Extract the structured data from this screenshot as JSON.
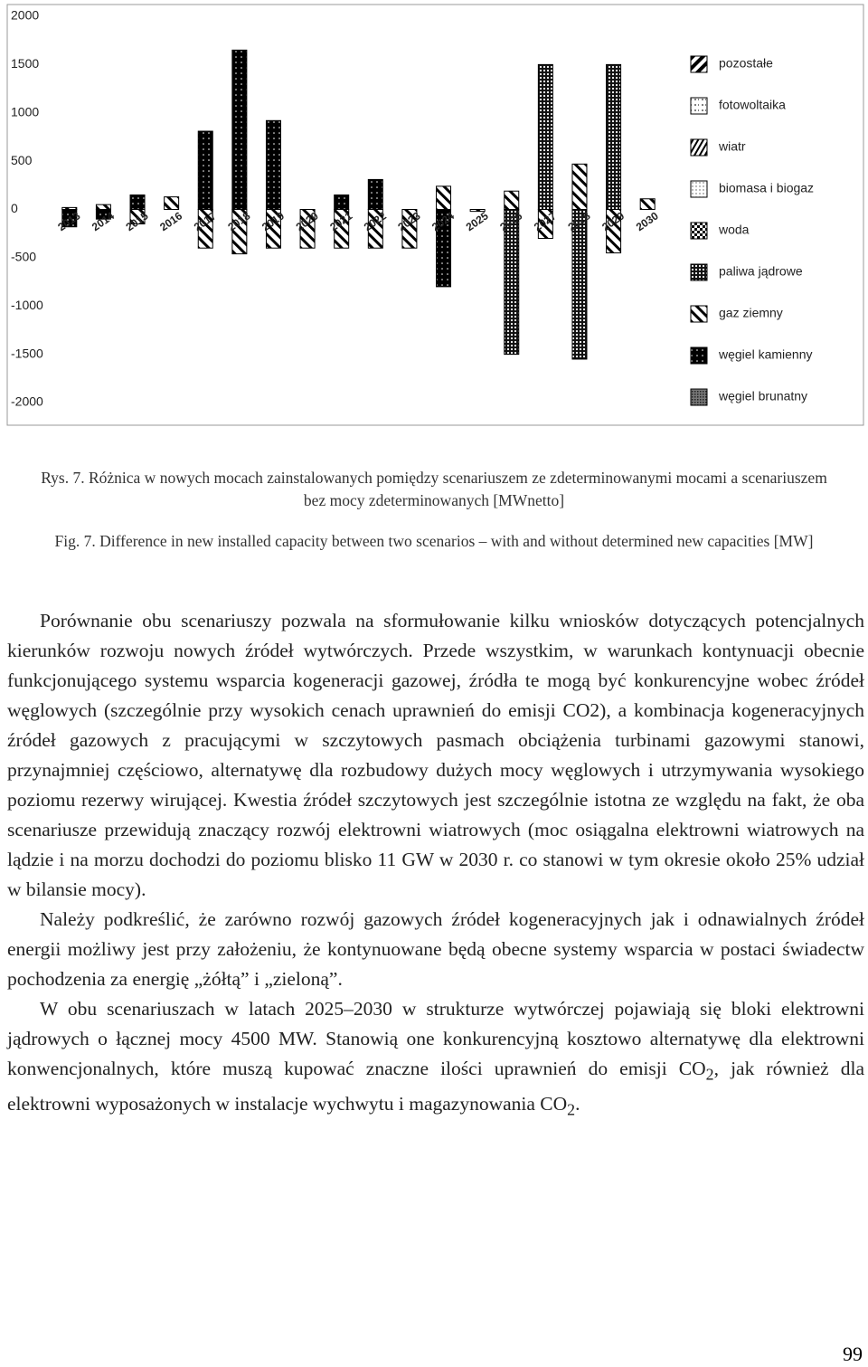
{
  "chart_data": {
    "type": "bar",
    "stacked": true,
    "categories": [
      "2013",
      "2014",
      "2015",
      "2016",
      "2017",
      "2018",
      "2019",
      "2020",
      "2021",
      "2022",
      "2023",
      "2024",
      "2025",
      "2026",
      "2027",
      "2028",
      "2029",
      "2030"
    ],
    "series": [
      {
        "name": "pozostałe",
        "values": [
          0,
          0,
          0,
          0,
          0,
          0,
          0,
          0,
          0,
          0,
          0,
          0,
          0,
          0,
          0,
          0,
          0,
          0
        ]
      },
      {
        "name": "fotowoltaika",
        "values": [
          0,
          0,
          0,
          0,
          0,
          0,
          0,
          0,
          0,
          0,
          0,
          0,
          0,
          0,
          0,
          0,
          0,
          0
        ]
      },
      {
        "name": "wiatr",
        "values": [
          0,
          0,
          0,
          0,
          0,
          0,
          0,
          0,
          0,
          0,
          0,
          0,
          0,
          0,
          0,
          0,
          0,
          0
        ]
      },
      {
        "name": "biomasa i biogaz",
        "values": [
          0,
          0,
          0,
          0,
          0,
          0,
          0,
          0,
          0,
          0,
          0,
          0,
          0,
          0,
          0,
          0,
          0,
          0
        ]
      },
      {
        "name": "woda",
        "values": [
          0,
          0,
          0,
          0,
          0,
          0,
          0,
          0,
          0,
          0,
          0,
          0,
          0,
          0,
          0,
          0,
          0,
          0
        ]
      },
      {
        "name": "paliwa jądrowe",
        "values": [
          0,
          0,
          0,
          0,
          0,
          0,
          0,
          0,
          0,
          0,
          0,
          0,
          0,
          -1500,
          1500,
          -1550,
          1500,
          0
        ]
      },
      {
        "name": "gaz ziemny",
        "values": [
          20,
          50,
          -150,
          130,
          -400,
          -460,
          -400,
          -400,
          -400,
          -400,
          -400,
          240,
          -20,
          190,
          -300,
          470,
          -450,
          110
        ]
      },
      {
        "name": "węgiel kamienny",
        "values": [
          -180,
          -100,
          150,
          0,
          810,
          1650,
          920,
          0,
          150,
          310,
          0,
          -800,
          0,
          0,
          0,
          0,
          0,
          0
        ]
      },
      {
        "name": "węgiel brunatny",
        "values": [
          0,
          0,
          0,
          0,
          0,
          0,
          0,
          0,
          0,
          0,
          0,
          0,
          0,
          0,
          0,
          0,
          0,
          0
        ]
      }
    ],
    "ylim": [
      -2000,
      2000
    ],
    "yticks": [
      2000,
      1500,
      1000,
      500,
      0,
      -500,
      -1000,
      -1500,
      -2000
    ],
    "grid": false,
    "legend": "right"
  },
  "captions": [
    "Rys. 7. Różnica w nowych mocach zainstalowanych pomiędzy scenariuszem ze zdeterminowanymi mocami a scenariuszem bez mocy zdeterminowanych [MWnetto]",
    "Fig. 7. Difference in new installed capacity between two scenarios – with and without determined new capacities [MW]"
  ],
  "paragraphs": [
    [
      "Porównanie obu scenariuszy pozwala na sformułowanie kilku wniosków dotyczących potencjalnych kierunków rozwoju nowych źródeł wytwórczych. Przede wszystkim, w warunkach kontynuacji obecnie funkcjonującego systemu wsparcia kogeneracji gazowej, źródła te mogą być konkurencyjne wobec źródeł węglowych (szczególnie przy wysokich cenach uprawnień do emisji CO2), a kombinacja kogeneracyjnych źródeł gazowych z pracującymi w szczytowych pasmach obciążenia turbinami gazowymi stanowi, przynajmniej częściowo, alternatywę dla rozbudowy dużych mocy węglowych i utrzymywania wysokiego poziomu rezerwy wirującej. Kwestia źródeł szczytowych jest szczególnie istotna ze względu na fakt, że oba scenariusze przewidują znaczący rozwój elektrowni wiatrowych (moc osiągalna elektrowni wiatrowych na lądzie i na morzu dochodzi do poziomu blisko 11 GW w 2030 r. co  stanowi w tym okresie około 25% udział w bilansie mocy)."
    ],
    [
      "Należy podkreślić, że zarówno rozwój gazowych źródeł kogeneracyjnych jak i odnawialnych źródeł energii możliwy jest przy założeniu, że kontynuowane będą obecne systemy wsparcia w postaci świadectw pochodzenia za energię „żółtą” i „zieloną”."
    ],
    [
      "W obu scenariuszach w latach 2025–2030 w strukturze wytwórczej pojawiają się bloki elektrowni jądrowych o łącznej mocy 4500 MW. Stanowią one konkurencyjną kosztowo alternatywę dla elektrowni konwencjonalnych, które muszą kupować znaczne ilości uprawnień do emisji CO",
      "2",
      ", jak również dla elektrowni wyposażonych w instalacje wychwytu i magazynowania CO",
      "2",
      "."
    ]
  ],
  "page_number": "99"
}
